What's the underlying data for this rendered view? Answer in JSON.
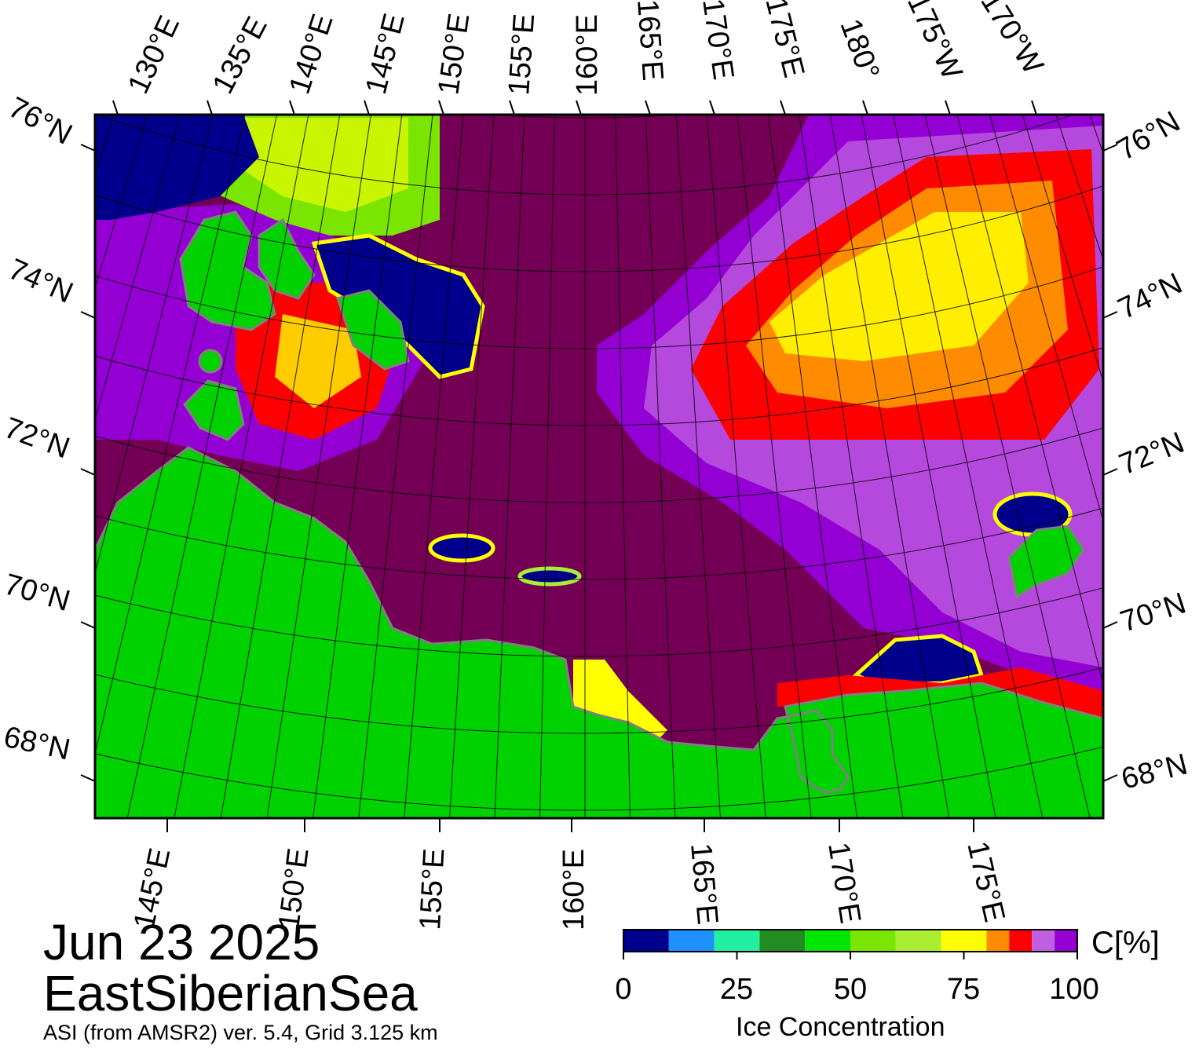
{
  "map": {
    "top_longitude_labels": [
      "130°E",
      "135°E",
      "140°E",
      "145°E",
      "150°E",
      "155°E",
      "160°E",
      "165°E",
      "170°E",
      "175°E",
      "180°",
      "175°W",
      "170°W"
    ],
    "bottom_longitude_labels": [
      "145°E",
      "150°E",
      "155°E",
      "160°E",
      "165°E",
      "170°E",
      "175°E"
    ],
    "left_latitude_labels": [
      "76°N",
      "74°N",
      "72°N",
      "70°N",
      "68°N"
    ],
    "right_latitude_labels": [
      "76°N",
      "74°N",
      "72°N",
      "70°N",
      "68°N"
    ],
    "colors": {
      "open_water": "#730055",
      "land": "#00d200",
      "land_grey": "#808080",
      "ice_low": "#2a0078",
      "frame": "#000000"
    }
  },
  "title": {
    "date": "Jun 23 2025",
    "region": "EastSiberianSea",
    "product": "ASI (from AMSR2) ver. 5.4,  Grid 3.125 km"
  },
  "colorbar": {
    "unit_label": "C[%]",
    "title": "Ice Concentration",
    "tick_labels": [
      "0",
      "25",
      "50",
      "75",
      "100"
    ],
    "ticks": [
      0,
      25,
      50,
      75,
      100
    ],
    "bins": [
      {
        "from": 0,
        "to": 10,
        "color": "#00008c"
      },
      {
        "from": 10,
        "to": 20,
        "color": "#1e90ff"
      },
      {
        "from": 20,
        "to": 30,
        "color": "#20f0a0"
      },
      {
        "from": 30,
        "to": 40,
        "color": "#228b22"
      },
      {
        "from": 40,
        "to": 50,
        "color": "#00e600"
      },
      {
        "from": 50,
        "to": 60,
        "color": "#7ae600"
      },
      {
        "from": 60,
        "to": 70,
        "color": "#aaee33"
      },
      {
        "from": 70,
        "to": 80,
        "color": "#ffff00"
      },
      {
        "from": 80,
        "to": 85,
        "color": "#ff8c00"
      },
      {
        "from": 85,
        "to": 90,
        "color": "#ff0000"
      },
      {
        "from": 90,
        "to": 95,
        "color": "#c060e0"
      },
      {
        "from": 95,
        "to": 100,
        "color": "#9400d3"
      }
    ]
  }
}
